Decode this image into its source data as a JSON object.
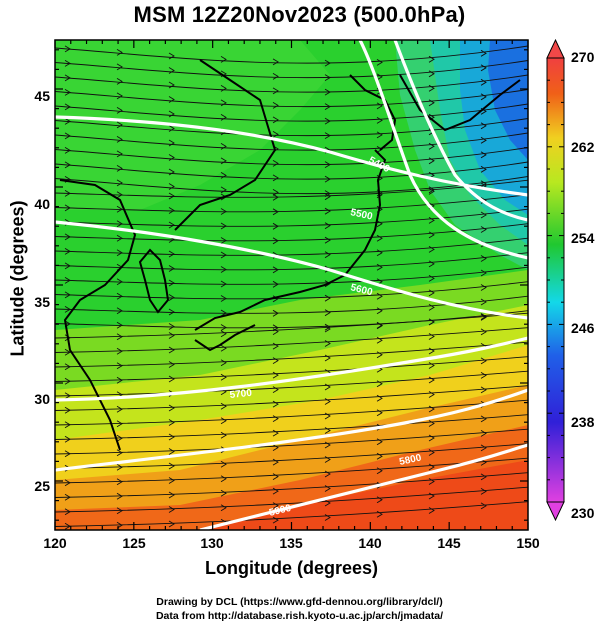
{
  "title": "MSM 12Z20Nov2023 (500.0hPa)",
  "x_axis": {
    "label": "Longitude (degrees)",
    "ticks": [
      "120",
      "125",
      "130",
      "135",
      "140",
      "145",
      "150"
    ]
  },
  "y_axis": {
    "label": "Latitude  (degrees)",
    "ticks": [
      "45",
      "40",
      "35",
      "30",
      "25"
    ]
  },
  "colorbar": {
    "ticks": [
      "270",
      "262",
      "254",
      "246",
      "238",
      "230"
    ],
    "min": 230,
    "max": 270
  },
  "contour_labels": [
    "5400",
    "5500",
    "5600",
    "5700",
    "5800",
    "5900"
  ],
  "credit_line1": "Drawing by DCL (https://www.gfd-dennou.org/library/dcl/)",
  "credit_line2": "Data from http://database.rish.kyoto-u.ac.jp/arch/jmadata/",
  "chart_data": {
    "type": "heatmap",
    "title": "MSM 12Z20Nov2023 (500.0hPa)",
    "xlabel": "Longitude (degrees)",
    "ylabel": "Latitude  (degrees)",
    "xlim": [
      120,
      150
    ],
    "ylim": [
      22.5,
      47.5
    ],
    "color_range": [
      230,
      270
    ],
    "colormap": [
      "#e040e0",
      "#1c2cd8",
      "#13d2e6",
      "#28d020",
      "#d8e818",
      "#f05010",
      "#f05050"
    ],
    "overlays": [
      "wind streamlines (arrows)",
      "geopotential height contours (white)",
      "coastlines"
    ]
  }
}
